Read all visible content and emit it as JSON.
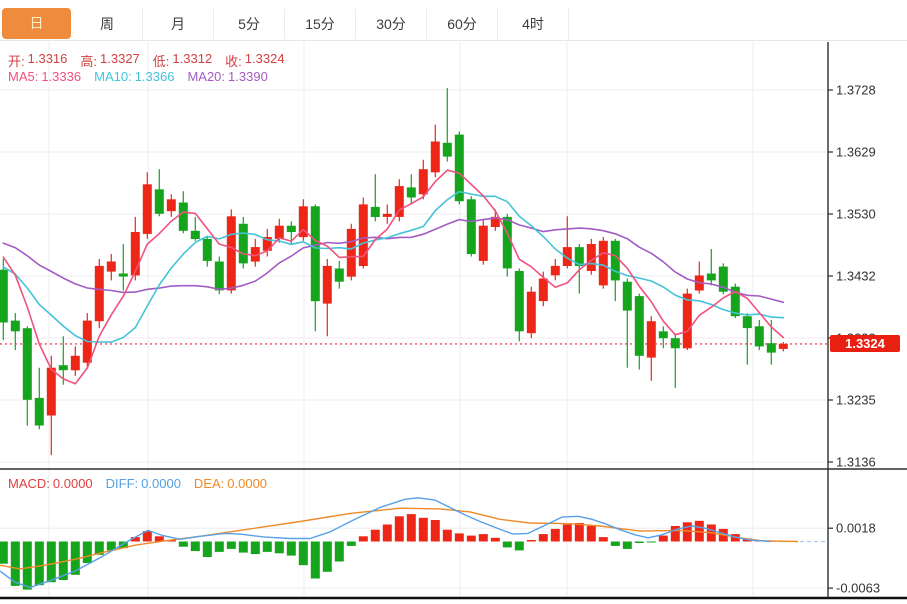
{
  "tabs": {
    "active_index": 0,
    "items": [
      {
        "label": "日"
      },
      {
        "label": "周"
      },
      {
        "label": "月"
      },
      {
        "label": "5分"
      },
      {
        "label": "15分"
      },
      {
        "label": "30分"
      },
      {
        "label": "60分"
      },
      {
        "label": "4时"
      }
    ]
  },
  "ohlc_legend": {
    "color": "#d34040",
    "items": [
      {
        "label": "开:",
        "value": "1.3316"
      },
      {
        "label": "高:",
        "value": "1.3327"
      },
      {
        "label": "低:",
        "value": "1.3312"
      },
      {
        "label": "收:",
        "value": "1.3324"
      }
    ]
  },
  "ma_legend": {
    "items": [
      {
        "label": "MA5:",
        "value": "1.3336",
        "color": "#f0527e"
      },
      {
        "label": "MA10:",
        "value": "1.3366",
        "color": "#45c3d8"
      },
      {
        "label": "MA20:",
        "value": "1.3390",
        "color": "#a35cc4"
      }
    ]
  },
  "macd_legend": {
    "items": [
      {
        "label": "MACD:",
        "value": "0.0000",
        "color": "#e04040"
      },
      {
        "label": "DIFF:",
        "value": "0.0000",
        "color": "#54a0e4"
      },
      {
        "label": "DEA:",
        "value": "0.0000",
        "color": "#ef8a28"
      }
    ]
  },
  "price_axis": {
    "tick_labels": [
      "1.3728",
      "1.3629",
      "1.3530",
      "1.3432",
      "1.3333",
      "1.3235",
      "1.3136"
    ],
    "current_label": "1.3324"
  },
  "macd_axis": {
    "tick_labels": [
      "0.0018",
      "-0.0063"
    ]
  },
  "colors": {
    "up": "#ee2618",
    "down": "#14a51c",
    "ma5": "#f0527e",
    "ma10": "#45c3d8",
    "ma20": "#a35cc4",
    "diff": "#58a0e8",
    "dea": "#ef8a28",
    "grid": "#ededf1",
    "axis": "#2e2e2e",
    "dotted": "#f4495c",
    "zero_dash": "#a9cae8"
  },
  "chart_data": {
    "type": "candlestick",
    "title": "",
    "panels": [
      "price",
      "macd"
    ],
    "legend_position": "top-left",
    "grid": true,
    "price_ticks": [
      1.3728,
      1.3629,
      1.353,
      1.3432,
      1.3333,
      1.3235,
      1.3136
    ],
    "current_price": 1.3324,
    "last_ohlc": {
      "open": 1.3316,
      "high": 1.3327,
      "low": 1.3312,
      "close": 1.3324
    },
    "ma_periods": [
      5,
      10,
      20
    ],
    "ma_current": {
      "ma5": 1.3336,
      "ma10": 1.3366,
      "ma20": 1.339
    },
    "ma_anchors": {
      "5": 1.3488,
      "10": 1.3456,
      "20": 1.3491
    },
    "candle_format": [
      "open",
      "high",
      "low",
      "close"
    ],
    "candles": [
      [
        1.3442,
        1.3459,
        1.333,
        1.3358
      ],
      [
        1.3361,
        1.3373,
        1.3314,
        1.3344
      ],
      [
        1.3349,
        1.3352,
        1.3194,
        1.3235
      ],
      [
        1.3238,
        1.3286,
        1.3188,
        1.3194
      ],
      [
        1.321,
        1.3305,
        1.3147,
        1.3286
      ],
      [
        1.329,
        1.3336,
        1.3259,
        1.3282
      ],
      [
        1.3282,
        1.332,
        1.3273,
        1.3305
      ],
      [
        1.3294,
        1.3373,
        1.3286,
        1.3361
      ],
      [
        1.336,
        1.3459,
        1.3349,
        1.3448
      ],
      [
        1.3439,
        1.3467,
        1.3425,
        1.3455
      ],
      [
        1.3436,
        1.3483,
        1.3409,
        1.3431
      ],
      [
        1.3433,
        1.3526,
        1.3425,
        1.3502
      ],
      [
        1.3499,
        1.3597,
        1.3491,
        1.3578
      ],
      [
        1.357,
        1.3602,
        1.3527,
        1.3531
      ],
      [
        1.3535,
        1.3562,
        1.3526,
        1.3554
      ],
      [
        1.3549,
        1.3567,
        1.35,
        1.3504
      ],
      [
        1.3504,
        1.3526,
        1.3488,
        1.3491
      ],
      [
        1.3491,
        1.3496,
        1.3447,
        1.3456
      ],
      [
        1.3455,
        1.3463,
        1.3403,
        1.3409
      ],
      [
        1.3409,
        1.3538,
        1.3404,
        1.3527
      ],
      [
        1.3515,
        1.3526,
        1.3444,
        1.3452
      ],
      [
        1.3455,
        1.3491,
        1.3447,
        1.3478
      ],
      [
        1.3472,
        1.3507,
        1.3463,
        1.3494
      ],
      [
        1.3491,
        1.3523,
        1.3485,
        1.3512
      ],
      [
        1.3512,
        1.3519,
        1.3483,
        1.3502
      ],
      [
        1.3494,
        1.3554,
        1.3488,
        1.3543
      ],
      [
        1.3543,
        1.3546,
        1.3344,
        1.3392
      ],
      [
        1.3388,
        1.3459,
        1.3336,
        1.3448
      ],
      [
        1.3444,
        1.3456,
        1.3412,
        1.3423
      ],
      [
        1.3431,
        1.3515,
        1.3425,
        1.3507
      ],
      [
        1.3448,
        1.3557,
        1.3444,
        1.3546
      ],
      [
        1.3542,
        1.3594,
        1.3519,
        1.3526
      ],
      [
        1.3526,
        1.3546,
        1.3515,
        1.3531
      ],
      [
        1.3526,
        1.3586,
        1.3519,
        1.3575
      ],
      [
        1.3573,
        1.3594,
        1.3546,
        1.3557
      ],
      [
        1.3562,
        1.3617,
        1.3554,
        1.3602
      ],
      [
        1.3597,
        1.3673,
        1.3589,
        1.3646
      ],
      [
        1.3644,
        1.3731,
        1.3614,
        1.3622
      ],
      [
        1.3657,
        1.3662,
        1.3546,
        1.3551
      ],
      [
        1.3554,
        1.3559,
        1.3463,
        1.3467
      ],
      [
        1.3456,
        1.3523,
        1.345,
        1.3512
      ],
      [
        1.351,
        1.3538,
        1.3504,
        1.3526
      ],
      [
        1.3526,
        1.3531,
        1.3431,
        1.3444
      ],
      [
        1.344,
        1.3444,
        1.3328,
        1.3344
      ],
      [
        1.3341,
        1.3415,
        1.3333,
        1.3407
      ],
      [
        1.3392,
        1.3439,
        1.3384,
        1.3428
      ],
      [
        1.3433,
        1.3459,
        1.3425,
        1.3448
      ],
      [
        1.3448,
        1.3527,
        1.3444,
        1.3478
      ],
      [
        1.3478,
        1.3483,
        1.3404,
        1.3448
      ],
      [
        1.344,
        1.3491,
        1.3434,
        1.3483
      ],
      [
        1.3417,
        1.3494,
        1.3412,
        1.3488
      ],
      [
        1.3488,
        1.3491,
        1.3392,
        1.3425
      ],
      [
        1.3423,
        1.3428,
        1.3286,
        1.3377
      ],
      [
        1.34,
        1.3404,
        1.3283,
        1.3305
      ],
      [
        1.3302,
        1.3368,
        1.3265,
        1.336
      ],
      [
        1.3344,
        1.3352,
        1.3317,
        1.3333
      ],
      [
        1.3333,
        1.3341,
        1.3254,
        1.3317
      ],
      [
        1.3317,
        1.3412,
        1.3314,
        1.3404
      ],
      [
        1.3409,
        1.3455,
        1.3404,
        1.3433
      ],
      [
        1.3436,
        1.3475,
        1.3417,
        1.3425
      ],
      [
        1.3447,
        1.3452,
        1.3403,
        1.3407
      ],
      [
        1.3415,
        1.342,
        1.3365,
        1.3368
      ],
      [
        1.3368,
        1.3373,
        1.3291,
        1.3349
      ],
      [
        1.3352,
        1.3362,
        1.3314,
        1.332
      ],
      [
        1.3325,
        1.3362,
        1.3291,
        1.331
      ],
      [
        1.3316,
        1.3327,
        1.3312,
        1.3324
      ]
    ],
    "macd": {
      "ticks": [
        0.0018,
        -0.0063
      ],
      "current": {
        "macd": 0.0,
        "diff": 0.0,
        "dea": 0.0
      },
      "hist": [
        -0.003,
        -0.006,
        -0.0065,
        -0.0059,
        -0.0055,
        -0.0052,
        -0.0045,
        -0.0029,
        -0.0018,
        -0.0012,
        -0.0009,
        0.0006,
        0.0014,
        0.0007,
        0.0002,
        -0.0007,
        -0.0013,
        -0.0021,
        -0.0014,
        -0.001,
        -0.0015,
        -0.0017,
        -0.0014,
        -0.0016,
        -0.0019,
        -0.0032,
        -0.005,
        -0.0041,
        -0.0027,
        -0.0006,
        0.0007,
        0.0016,
        0.0023,
        0.0034,
        0.0037,
        0.0032,
        0.0029,
        0.0016,
        0.0011,
        0.0008,
        0.001,
        0.0005,
        -0.0008,
        -0.0012,
        0.0002,
        0.001,
        0.0017,
        0.0023,
        0.0025,
        0.0021,
        0.0006,
        -0.0006,
        -0.001,
        -0.0002,
        -0.0001,
        0.0008,
        0.0021,
        0.0026,
        0.0028,
        0.0023,
        0.0017,
        0.001,
        0.0004,
        0.0002,
        0.0001,
        0.0
      ],
      "diff_points": [
        [
          0,
          -0.004
        ],
        [
          15,
          -0.0055
        ],
        [
          30,
          -0.0062
        ],
        [
          50,
          -0.0053
        ],
        [
          75,
          -0.004
        ],
        [
          100,
          -0.0022
        ],
        [
          115,
          -0.001
        ],
        [
          130,
          0.0002
        ],
        [
          148,
          0.0015
        ],
        [
          163,
          0.0008
        ],
        [
          180,
          0.0003
        ],
        [
          200,
          0.0007
        ],
        [
          225,
          0.0011
        ],
        [
          240,
          0.001
        ],
        [
          265,
          0.0006
        ],
        [
          290,
          0.0004
        ],
        [
          310,
          0.0004
        ],
        [
          330,
          0.0013
        ],
        [
          355,
          0.003
        ],
        [
          380,
          0.0046
        ],
        [
          405,
          0.0057
        ],
        [
          418,
          0.0059
        ],
        [
          435,
          0.0056
        ],
        [
          450,
          0.0046
        ],
        [
          465,
          0.0036
        ],
        [
          480,
          0.0027
        ],
        [
          495,
          0.0019
        ],
        [
          513,
          0.001
        ],
        [
          528,
          0.0011
        ],
        [
          545,
          0.0022
        ],
        [
          562,
          0.0033
        ],
        [
          578,
          0.0034
        ],
        [
          592,
          0.003
        ],
        [
          605,
          0.0024
        ],
        [
          620,
          0.0016
        ],
        [
          635,
          0.0009
        ],
        [
          648,
          0.0005
        ],
        [
          662,
          0.0009
        ],
        [
          678,
          0.0017
        ],
        [
          692,
          0.0021
        ],
        [
          705,
          0.0018
        ],
        [
          720,
          0.0012
        ],
        [
          735,
          0.0006
        ],
        [
          750,
          0.0002
        ],
        [
          770,
          0.0
        ]
      ],
      "dea_points": [
        [
          0,
          -0.0032
        ],
        [
          20,
          -0.0037
        ],
        [
          45,
          -0.0032
        ],
        [
          75,
          -0.0024
        ],
        [
          105,
          -0.0014
        ],
        [
          135,
          -0.0005
        ],
        [
          165,
          0.0001
        ],
        [
          200,
          0.0007
        ],
        [
          250,
          0.0017
        ],
        [
          300,
          0.0027
        ],
        [
          350,
          0.0038
        ],
        [
          400,
          0.0045
        ],
        [
          440,
          0.0044
        ],
        [
          470,
          0.004
        ],
        [
          500,
          0.003
        ],
        [
          530,
          0.0025
        ],
        [
          570,
          0.0024
        ],
        [
          600,
          0.0021
        ],
        [
          640,
          0.0014
        ],
        [
          680,
          0.0015
        ],
        [
          710,
          0.0012
        ],
        [
          740,
          0.0005
        ],
        [
          762,
          0.0001
        ],
        [
          798,
          0.0
        ]
      ]
    }
  }
}
